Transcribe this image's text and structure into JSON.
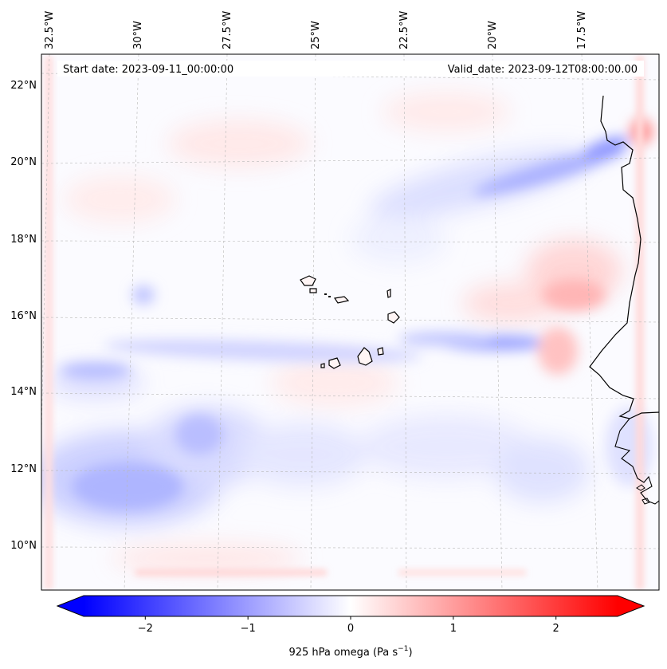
{
  "map": {
    "start_date": "Start date: 2023-09-11_00:00:00",
    "valid_date": "Valid_date: 2023-09-12T08:00:00.00",
    "lon_labels": [
      "32.5°W",
      "30°W",
      "27.5°W",
      "25°W",
      "22.5°W",
      "20°W",
      "17.5°W"
    ],
    "lat_labels": [
      "22°N",
      "20°N",
      "18°N",
      "16°N",
      "14°N",
      "12°N",
      "10°N"
    ],
    "field_colors": {
      "negative": "#0000ff",
      "neutral": "#ffffff",
      "positive": "#ff0000"
    },
    "coastline_color": "#000000"
  },
  "colorbar": {
    "ticks": [
      "−2",
      "−1",
      "0",
      "1",
      "2"
    ],
    "tick_values": [
      -2,
      -1,
      0,
      1,
      2
    ],
    "range": [
      -2.6,
      2.6
    ],
    "label": "925 hPa omega (Pa s",
    "label_sup": "−1",
    "label_close": ")"
  }
}
